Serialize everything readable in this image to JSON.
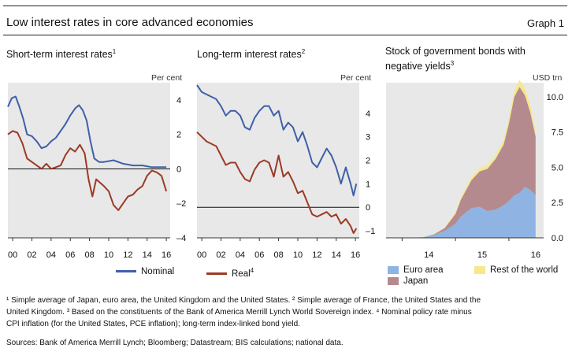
{
  "header": {
    "title": "Low interest rates in core advanced economies",
    "graph_label": "Graph 1"
  },
  "panels": {
    "short": {
      "title": "Short-term interest rates",
      "sup": "1",
      "unit": "Per cent"
    },
    "long": {
      "title": "Long-term interest rates",
      "sup": "2",
      "unit": "Per cent"
    },
    "bonds": {
      "title_line1": "Stock of government bonds with",
      "title_line2": "negative yields",
      "sup": "3",
      "unit": "USD trn"
    }
  },
  "legend_left": {
    "nominal": "Nominal",
    "real": "Real",
    "real_sup": "4",
    "nominal_color": "#3f5fa8",
    "real_color": "#9b3a26"
  },
  "legend_right": {
    "euro": "Euro area",
    "rest": "Rest of the world",
    "japan": "Japan",
    "euro_color": "#8fb4e3",
    "japan_color": "#b58a8f",
    "rest_color": "#f5e98a"
  },
  "footnotes": {
    "line1": "¹ Simple average of Japan, euro area, the United Kingdom and the United States.   ² Simple average of France, the United States and the",
    "line2": "United Kingdom.   ³ Based on the constituents of the Bank of America Merrill Lynch World Sovereign index.   ⁴ Nominal policy rate minus",
    "line3": "CPI inflation (for the United States, PCE inflation); long-term index-linked bond yield.",
    "sources": "Sources: Bank of America Merrill Lynch; Bloomberg; Datastream; BIS calculations; national data."
  },
  "chart_data": [
    {
      "type": "line",
      "title": "Short-term interest rates",
      "ylabel": "Per cent",
      "ylim": [
        -4,
        5
      ],
      "yticks": [
        -4,
        -2,
        0,
        2,
        4
      ],
      "xlim": [
        2000,
        2016.9
      ],
      "xticks": [
        "00",
        "02",
        "04",
        "06",
        "08",
        "10",
        "12",
        "14",
        "16"
      ],
      "zero_line": true,
      "series": [
        {
          "name": "Nominal",
          "color": "#3f5fa8",
          "x": [
            2000,
            2000.4,
            2000.8,
            2001.2,
            2001.6,
            2002,
            2002.5,
            2003,
            2003.5,
            2004,
            2004.5,
            2005,
            2005.5,
            2006,
            2006.5,
            2007,
            2007.4,
            2007.8,
            2008.2,
            2008.6,
            2009,
            2009.5,
            2010,
            2011,
            2012,
            2013,
            2014,
            2015,
            2016,
            2016.5
          ],
          "y": [
            3.6,
            4.1,
            4.2,
            3.6,
            2.9,
            2.0,
            1.9,
            1.6,
            1.2,
            1.3,
            1.6,
            1.8,
            2.2,
            2.6,
            3.1,
            3.5,
            3.7,
            3.4,
            2.8,
            1.6,
            0.6,
            0.4,
            0.4,
            0.5,
            0.3,
            0.2,
            0.2,
            0.1,
            0.1,
            0.1
          ]
        },
        {
          "name": "Real",
          "color": "#9b3a26",
          "x": [
            2000,
            2000.5,
            2001,
            2001.5,
            2002,
            2002.5,
            2003,
            2003.5,
            2004,
            2004.5,
            2005,
            2005.5,
            2006,
            2006.5,
            2007,
            2007.5,
            2008,
            2008.4,
            2008.8,
            2009.2,
            2009.6,
            2010,
            2010.5,
            2011,
            2011.5,
            2012,
            2012.5,
            2013,
            2013.5,
            2014,
            2014.5,
            2015,
            2015.5,
            2016,
            2016.5
          ],
          "y": [
            2.0,
            2.2,
            2.1,
            1.5,
            0.6,
            0.4,
            0.2,
            0.0,
            0.3,
            0.0,
            0.1,
            0.2,
            0.8,
            1.2,
            1.0,
            1.4,
            0.9,
            -0.6,
            -1.6,
            -0.6,
            -0.8,
            -1.0,
            -1.3,
            -2.1,
            -2.4,
            -2.0,
            -1.6,
            -1.5,
            -1.2,
            -1.0,
            -0.4,
            -0.1,
            -0.2,
            -0.4,
            -1.3
          ]
        }
      ]
    },
    {
      "type": "line",
      "title": "Long-term interest rates",
      "ylabel": "Per cent",
      "ylim": [
        -1.3,
        5.3
      ],
      "yticks": [
        -1,
        0,
        1,
        2,
        3,
        4
      ],
      "xlim": [
        2000,
        2016.9
      ],
      "xticks": [
        "00",
        "02",
        "04",
        "06",
        "08",
        "10",
        "12",
        "14",
        "16"
      ],
      "zero_line": true,
      "series": [
        {
          "name": "Nominal",
          "color": "#3f5fa8",
          "x": [
            2000,
            2000.5,
            2001,
            2001.5,
            2002,
            2002.5,
            2003,
            2003.5,
            2004,
            2004.5,
            2005,
            2005.5,
            2006,
            2006.5,
            2007,
            2007.5,
            2008,
            2008.5,
            2009,
            2009.5,
            2010,
            2010.5,
            2011,
            2011.5,
            2012,
            2012.5,
            2013,
            2013.5,
            2014,
            2014.5,
            2015,
            2015.5,
            2016,
            2016.3,
            2016.6
          ],
          "y": [
            5.2,
            4.9,
            4.8,
            4.7,
            4.6,
            4.3,
            3.9,
            4.1,
            4.1,
            3.9,
            3.4,
            3.3,
            3.8,
            4.1,
            4.3,
            4.3,
            3.9,
            4.1,
            3.3,
            3.6,
            3.4,
            2.8,
            3.2,
            2.6,
            1.9,
            1.7,
            2.1,
            2.5,
            2.2,
            1.7,
            1.0,
            1.7,
            1.0,
            0.5,
            1.0
          ]
        },
        {
          "name": "Real",
          "color": "#9b3a26",
          "x": [
            2000,
            2000.5,
            2001,
            2001.5,
            2002,
            2002.5,
            2003,
            2003.5,
            2004,
            2004.5,
            2005,
            2005.5,
            2006,
            2006.5,
            2007,
            2007.5,
            2008,
            2008.5,
            2009,
            2009.5,
            2010,
            2010.5,
            2011,
            2011.5,
            2012,
            2012.5,
            2013,
            2013.5,
            2014,
            2014.5,
            2015,
            2015.5,
            2016,
            2016.3,
            2016.6
          ],
          "y": [
            3.2,
            3.0,
            2.8,
            2.7,
            2.6,
            2.2,
            1.8,
            1.9,
            1.9,
            1.5,
            1.2,
            1.1,
            1.6,
            1.9,
            2.0,
            1.9,
            1.3,
            2.2,
            1.3,
            1.5,
            1.1,
            0.6,
            0.7,
            0.2,
            -0.3,
            -0.4,
            -0.3,
            -0.2,
            -0.4,
            -0.3,
            -0.7,
            -0.5,
            -0.8,
            -1.1,
            -0.9
          ]
        }
      ]
    },
    {
      "type": "area",
      "stacked": true,
      "title": "Stock of government bonds with negative yields",
      "ylabel": "USD trn",
      "ylim": [
        0,
        11
      ],
      "yticks": [
        0.0,
        2.5,
        5.0,
        7.5,
        10.0
      ],
      "xlim": [
        2013.7,
        2016.65
      ],
      "xticks": [
        "14",
        "15",
        "16"
      ],
      "series": [
        {
          "name": "Euro area",
          "color": "#8fb4e3",
          "x": [
            2014.2,
            2014.4,
            2014.6,
            2014.8,
            2015.0,
            2015.1,
            2015.3,
            2015.45,
            2015.6,
            2015.75,
            2015.9,
            2016.0,
            2016.1,
            2016.2,
            2016.3,
            2016.4,
            2016.5
          ],
          "y": [
            0.0,
            0.05,
            0.2,
            0.5,
            1.0,
            1.5,
            2.1,
            2.2,
            1.9,
            2.0,
            2.3,
            2.6,
            3.0,
            3.2,
            3.6,
            3.4,
            3.0
          ]
        },
        {
          "name": "Japan",
          "color": "#b58a8f",
          "x": [
            2014.2,
            2014.4,
            2014.6,
            2014.8,
            2015.0,
            2015.1,
            2015.3,
            2015.45,
            2015.6,
            2015.75,
            2015.9,
            2016.0,
            2016.1,
            2016.2,
            2016.3,
            2016.4,
            2016.5
          ],
          "y": [
            0.0,
            0.0,
            0.05,
            0.2,
            0.7,
            1.2,
            2.0,
            2.5,
            3.0,
            3.6,
            4.3,
            5.5,
            7.0,
            7.5,
            6.5,
            5.5,
            4.2
          ]
        },
        {
          "name": "Rest of the world",
          "color": "#f5e98a",
          "x": [
            2014.2,
            2014.4,
            2014.6,
            2014.8,
            2015.0,
            2015.1,
            2015.3,
            2015.45,
            2015.6,
            2015.75,
            2015.9,
            2016.0,
            2016.1,
            2016.2,
            2016.3,
            2016.4,
            2016.5
          ],
          "y": [
            0.0,
            0.0,
            0.02,
            0.05,
            0.1,
            0.15,
            0.2,
            0.2,
            0.25,
            0.25,
            0.3,
            0.4,
            0.4,
            0.5,
            0.5,
            0.5,
            0.4
          ]
        }
      ]
    }
  ]
}
